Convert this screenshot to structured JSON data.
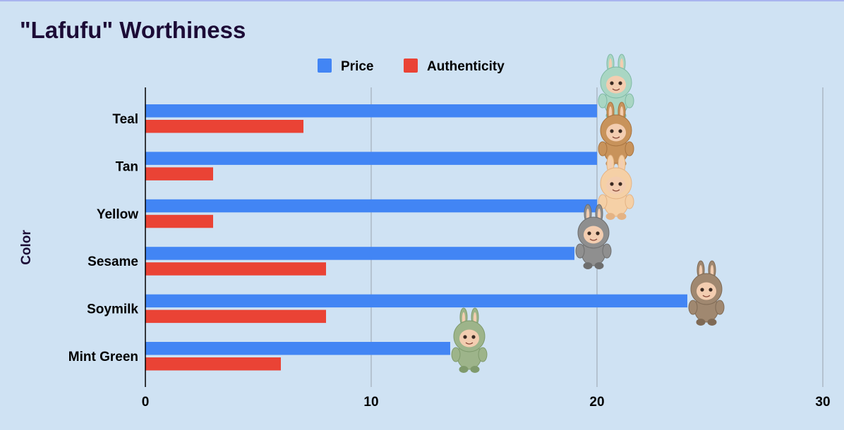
{
  "colors": {
    "background": "#cfe2f3",
    "price": "#4285f4",
    "authenticity": "#ea4335",
    "title": "#1c0b36",
    "text": "#000000",
    "axis_title": "#1c0b36",
    "gridline": "#9aa3ad"
  },
  "chart_data": {
    "type": "bar",
    "orientation": "horizontal",
    "title": "\"Lafufu\" Worthiness",
    "xlabel": "",
    "ylabel": "Color",
    "categories": [
      "Teal",
      "Tan",
      "Yellow",
      "Sesame",
      "Soymilk",
      "Mint Green"
    ],
    "series": [
      {
        "name": "Price",
        "values": [
          20,
          20,
          20,
          19,
          24,
          13.5
        ]
      },
      {
        "name": "Authenticity",
        "values": [
          7,
          3,
          3,
          8,
          8,
          6
        ]
      }
    ],
    "xlim": [
      0,
      30
    ],
    "xticks": [
      "0",
      "10",
      "20",
      "30"
    ],
    "grid": true,
    "legend_position": "top-center",
    "bar_end_images": [
      "teal-plush-icon",
      "tan-plush-icon",
      "yellow-plush-icon",
      "sesame-plush-icon",
      "soymilk-plush-icon",
      "mint-green-plush-icon"
    ]
  }
}
